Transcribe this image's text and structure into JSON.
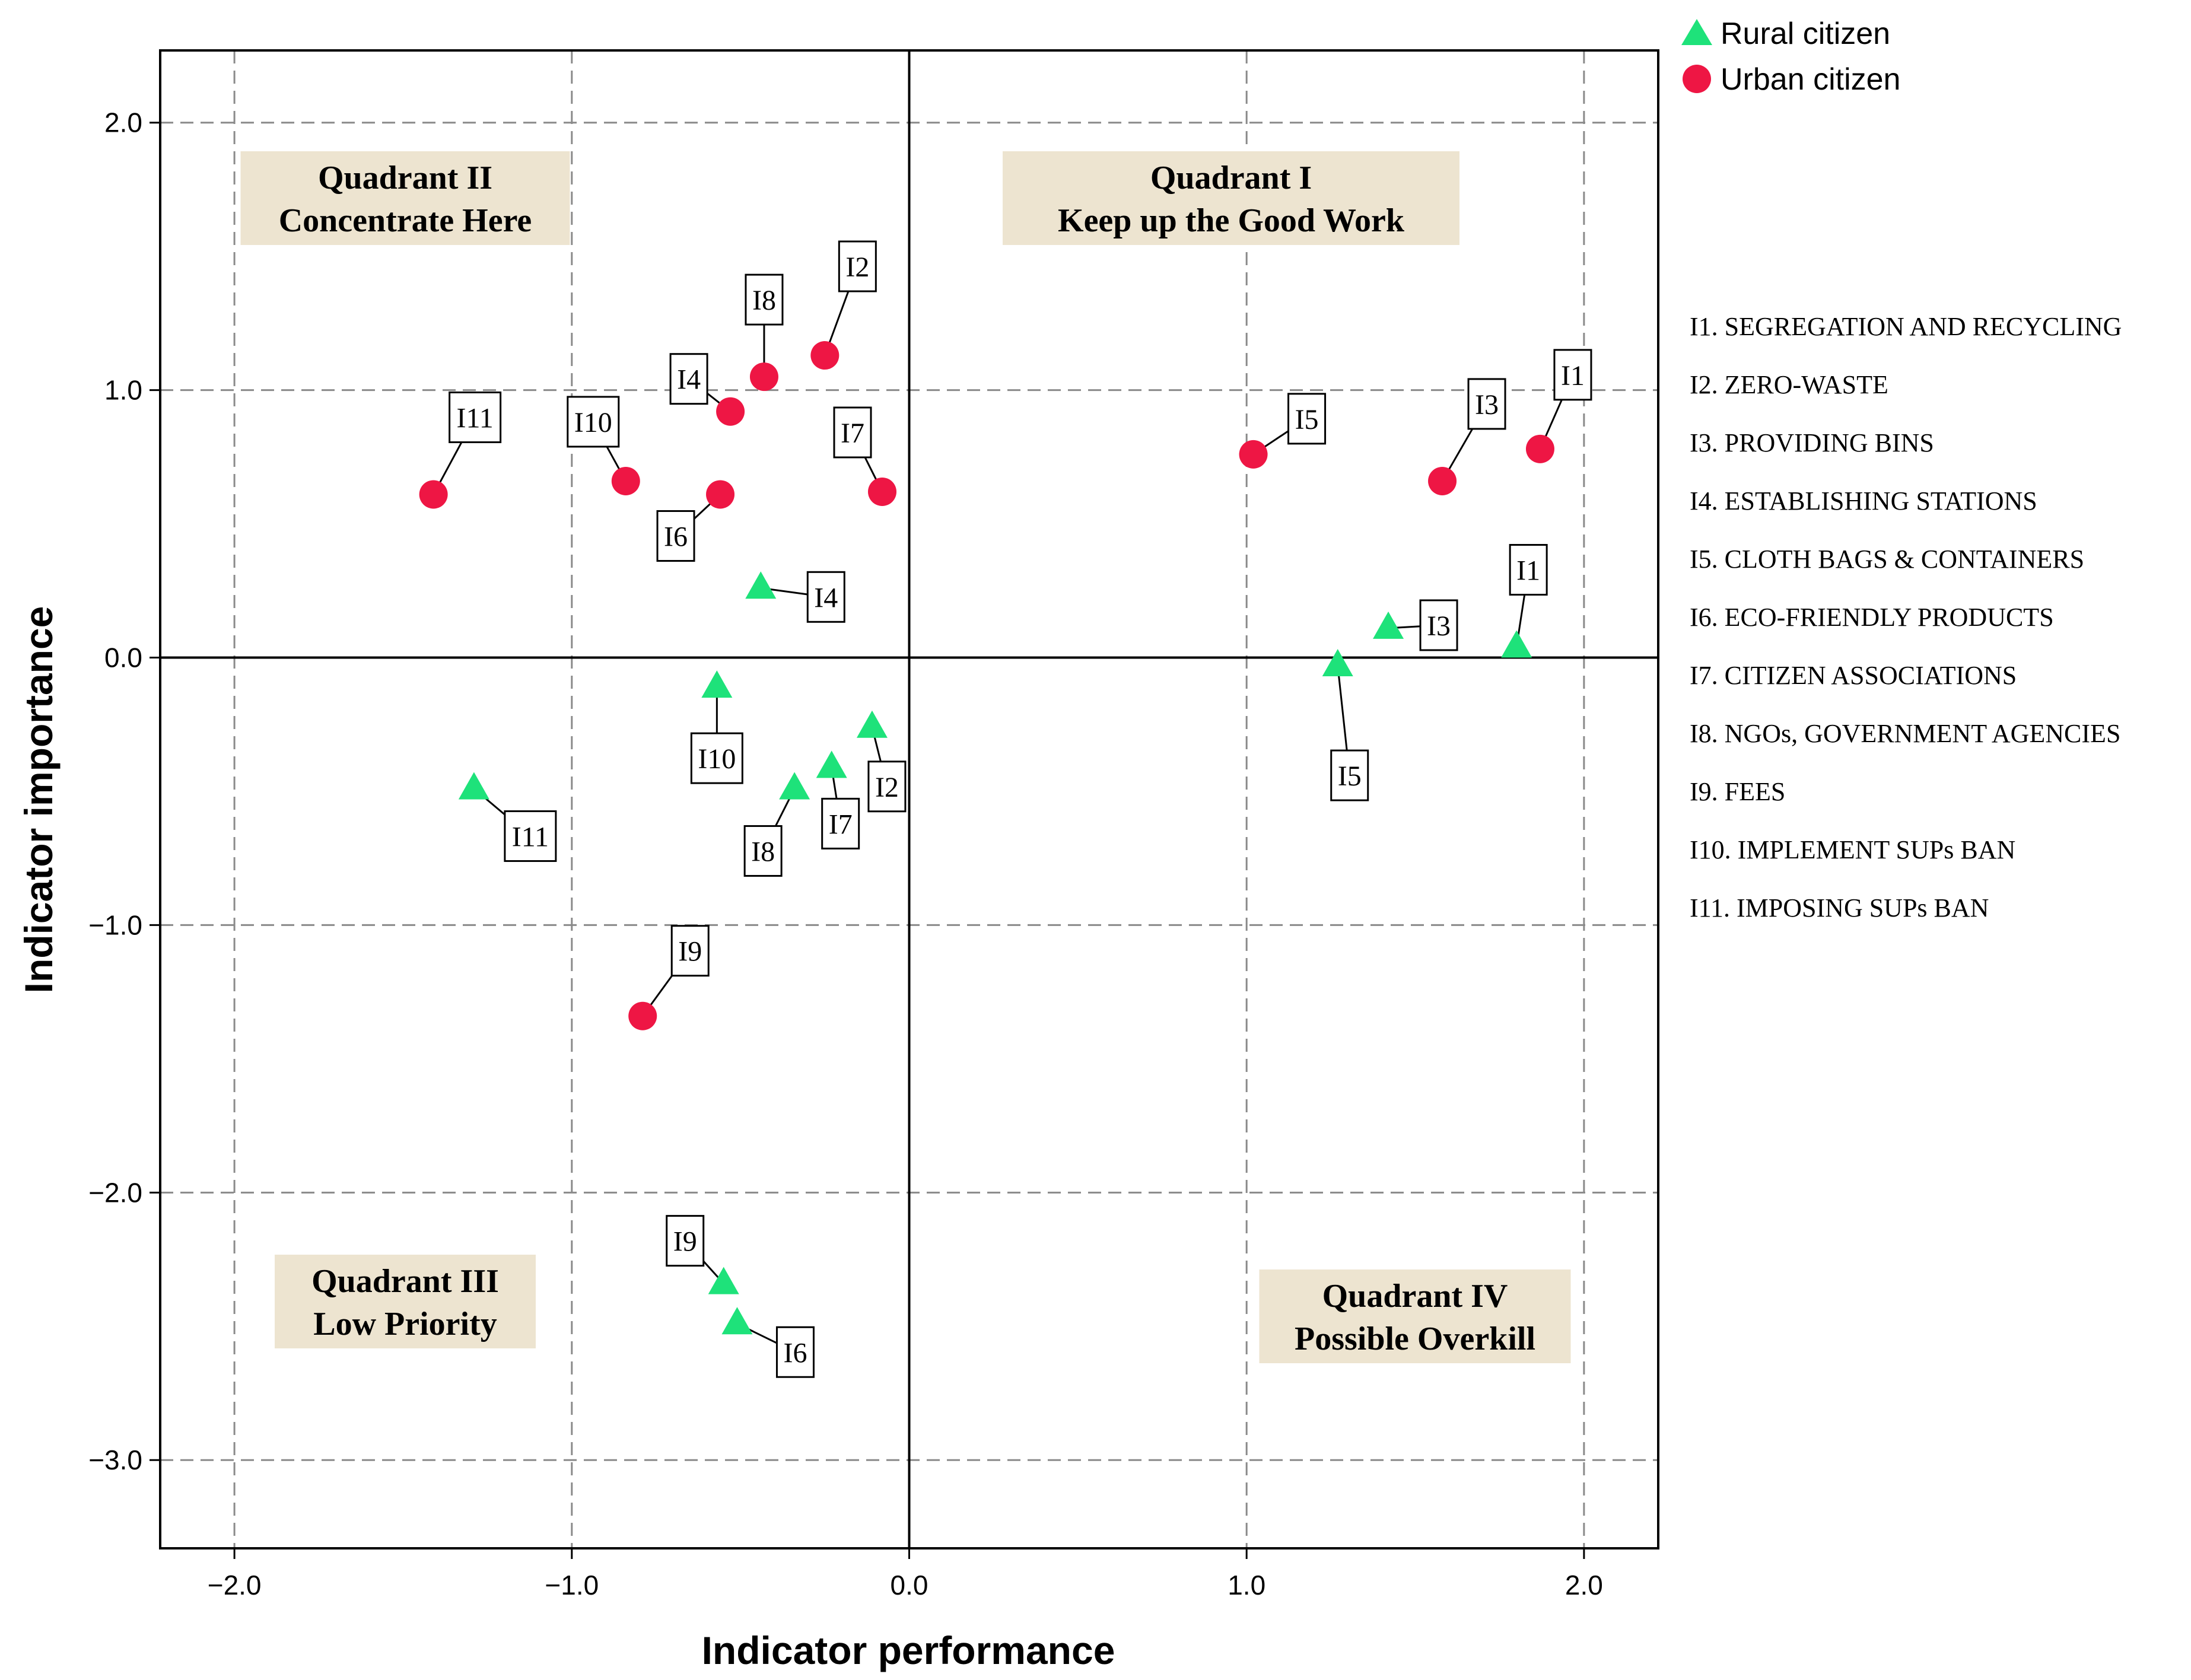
{
  "chart_data": {
    "type": "scatter",
    "xlabel": "Indicator performance",
    "ylabel": "Indicator importance",
    "xlim": [
      -2.22,
      2.22
    ],
    "ylim": [
      -3.33,
      2.27
    ],
    "x_ticks": [
      -2.0,
      -1.0,
      0.0,
      1.0,
      2.0
    ],
    "x_tick_labels": [
      "−2.0",
      "−1.0",
      "0.0",
      "1.0",
      "2.0"
    ],
    "y_ticks": [
      2.0,
      1.0,
      0.0,
      -1.0,
      -2.0,
      -3.0
    ],
    "y_tick_labels": [
      "2.0",
      "1.0",
      "0.0",
      "−1.0",
      "−2.0",
      "−3.0"
    ],
    "grid": true,
    "legend_position": "top-right outside",
    "colors": {
      "rural": "#1ee27a",
      "urban": "#ee1644",
      "quadrant_box": "#ede4d0"
    },
    "series": [
      {
        "name": "Rural citizen",
        "marker": "triangle",
        "points": [
          {
            "label": "I1",
            "x": 1.8,
            "y": 0.04
          },
          {
            "label": "I2",
            "x": -0.11,
            "y": -0.26
          },
          {
            "label": "I3",
            "x": 1.42,
            "y": 0.11
          },
          {
            "label": "I4",
            "x": -0.44,
            "y": 0.26
          },
          {
            "label": "I5",
            "x": 1.27,
            "y": -0.03
          },
          {
            "label": "I6",
            "x": -0.51,
            "y": -2.49
          },
          {
            "label": "I7",
            "x": -0.23,
            "y": -0.41
          },
          {
            "label": "I8",
            "x": -0.34,
            "y": -0.49
          },
          {
            "label": "I9",
            "x": -0.55,
            "y": -2.34
          },
          {
            "label": "I10",
            "x": -0.57,
            "y": -0.11
          },
          {
            "label": "I11",
            "x": -1.29,
            "y": -0.49
          }
        ]
      },
      {
        "name": "Urban citizen",
        "marker": "circle",
        "points": [
          {
            "label": "I1",
            "x": 1.87,
            "y": 0.78
          },
          {
            "label": "I2",
            "x": -0.25,
            "y": 1.13
          },
          {
            "label": "I3",
            "x": 1.58,
            "y": 0.66
          },
          {
            "label": "I4",
            "x": -0.53,
            "y": 0.92
          },
          {
            "label": "I5",
            "x": 1.02,
            "y": 0.76
          },
          {
            "label": "I6",
            "x": -0.56,
            "y": 0.61
          },
          {
            "label": "I7",
            "x": -0.08,
            "y": 0.62
          },
          {
            "label": "I8",
            "x": -0.43,
            "y": 1.05
          },
          {
            "label": "I9",
            "x": -0.79,
            "y": -1.34
          },
          {
            "label": "I10",
            "x": -0.84,
            "y": 0.66
          },
          {
            "label": "I11",
            "x": -1.41,
            "y": 0.61
          }
        ]
      }
    ],
    "quadrants": [
      {
        "id": "q1",
        "name": "Quadrant I",
        "subtitle": "Keep up the Good Work"
      },
      {
        "id": "q2",
        "name": "Quadrant II",
        "subtitle": "Concentrate Here"
      },
      {
        "id": "q3",
        "name": "Quadrant III",
        "subtitle": "Low Priority"
      },
      {
        "id": "q4",
        "name": "Quadrant IV",
        "subtitle": "Possible Overkill"
      }
    ],
    "indicator_key": [
      "I1. SEGREGATION AND RECYCLING",
      "I2. ZERO-WASTE",
      "I3. PROVIDING BINS",
      "I4. ESTABLISHING STATIONS",
      "I5. CLOTH BAGS & CONTAINERS",
      "I6. ECO-FRIENDLY PRODUCTS",
      "I7. CITIZEN ASSOCIATIONS",
      "I8. NGOs, GOVERNMENT AGENCIES",
      "I9. FEES",
      "I10. IMPLEMENT SUPs BAN",
      "I11. IMPOSING SUPs BAN"
    ]
  }
}
